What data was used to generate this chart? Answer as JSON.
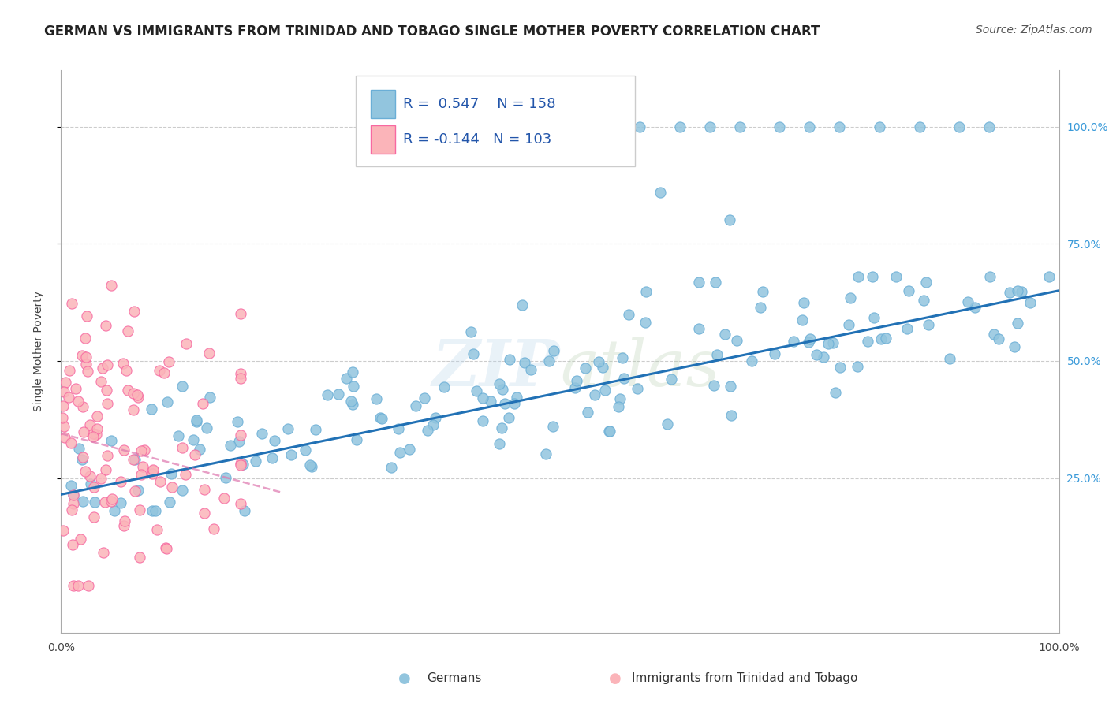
{
  "title": "GERMAN VS IMMIGRANTS FROM TRINIDAD AND TOBAGO SINGLE MOTHER POVERTY CORRELATION CHART",
  "source": "Source: ZipAtlas.com",
  "ylabel": "Single Mother Poverty",
  "watermark": "ZIPatlas",
  "blue_R": 0.547,
  "blue_N": 158,
  "pink_R": -0.144,
  "pink_N": 103,
  "blue_color": "#92c5de",
  "blue_edge_color": "#6aaed6",
  "blue_line_color": "#2171b5",
  "pink_color": "#fbb4b9",
  "pink_edge_color": "#f768a1",
  "pink_line_color": "#de77ae",
  "background_color": "#ffffff",
  "grid_color": "#cccccc",
  "ytick_values": [
    0.25,
    0.5,
    0.75,
    1.0
  ],
  "xlim": [
    0.0,
    1.0
  ],
  "ylim": [
    -0.08,
    1.12
  ],
  "title_fontsize": 12,
  "legend_fontsize": 13,
  "axis_label_fontsize": 10,
  "tick_label_fontsize": 10,
  "source_fontsize": 10,
  "right_tick_color": "#3a9ad9"
}
